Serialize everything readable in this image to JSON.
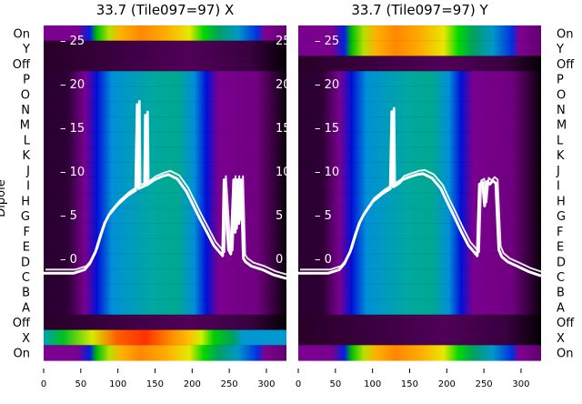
{
  "chart_data": {
    "type": "heatmap",
    "ylabel": "Dipole",
    "row_labels_top_to_bottom": [
      "On",
      "Y",
      "Off",
      "P",
      "O",
      "N",
      "M",
      "L",
      "K",
      "J",
      "I",
      "H",
      "G",
      "F",
      "E",
      "D",
      "C",
      "B",
      "A",
      "Off",
      "X",
      "On"
    ],
    "xticks": [
      0,
      50,
      100,
      150,
      200,
      250,
      300
    ],
    "xlim": [
      0,
      327
    ],
    "overlay_yticks": [
      0,
      5,
      10,
      15,
      20,
      25
    ],
    "overlay_ylim": [
      -1.7,
      26.6
    ],
    "panels": [
      {
        "title": "33.7 (Tile097=97) X",
        "row_kinds": [
          "on",
          "off",
          "off",
          "blue",
          "blue",
          "blue",
          "blue",
          "blue",
          "blue",
          "blue",
          "blue",
          "blue",
          "blue",
          "blue",
          "blue",
          "blue",
          "blue",
          "blue",
          "blue",
          "off",
          "x",
          "on"
        ],
        "trace": {
          "x": [
            0,
            40,
            55,
            62,
            70,
            76,
            82,
            88,
            100,
            113,
            124,
            126,
            127,
            128,
            136,
            137,
            138,
            139,
            149,
            160,
            168,
            180,
            192,
            202,
            210,
            220,
            229,
            238,
            241,
            243,
            246,
            249,
            252,
            256,
            258,
            261,
            263,
            266,
            269,
            272,
            280,
            295,
            310,
            327
          ],
          "y": [
            -1.7,
            -1.7,
            -1.3,
            -0.6,
            0.8,
            2.5,
            4,
            5,
            6.2,
            7.2,
            7.8,
            17.6,
            17.6,
            8,
            8.3,
            16.4,
            16.4,
            8.4,
            9,
            9.4,
            9.6,
            9.1,
            7.7,
            6,
            4.6,
            3,
            1.5,
            0.6,
            0.3,
            9,
            5,
            1,
            0.5,
            9,
            3,
            9,
            4,
            9,
            0,
            -0.4,
            -0.9,
            -1.3,
            -1.9,
            -2.3
          ]
        }
      },
      {
        "title": "33.7 (Tile097=97) Y",
        "row_kinds": [
          "on",
          "on",
          "off",
          "blue",
          "blue",
          "blue",
          "blue",
          "blue",
          "blue",
          "blue",
          "blue",
          "blue",
          "blue",
          "blue",
          "blue",
          "blue",
          "blue",
          "blue",
          "blue",
          "off",
          "off",
          "on"
        ],
        "trace": {
          "x": [
            0,
            40,
            55,
            62,
            70,
            76,
            82,
            88,
            100,
            113,
            124,
            126,
            127,
            128,
            136,
            140,
            149,
            160,
            168,
            180,
            192,
            202,
            210,
            220,
            229,
            238,
            241,
            244,
            248,
            251,
            254,
            258,
            262,
            266,
            270,
            274,
            282,
            295,
            310,
            327
          ],
          "y": [
            -1.7,
            -1.7,
            -1.3,
            -0.6,
            0.8,
            2.5,
            4,
            5,
            6.5,
            7.4,
            8,
            16.8,
            16.8,
            8.2,
            8.6,
            9,
            9.3,
            9.6,
            9.7,
            9.2,
            8,
            6.2,
            4.8,
            3,
            1.5,
            0.6,
            0.3,
            8.5,
            8.7,
            6,
            8.8,
            8.5,
            8.9,
            8.6,
            1,
            0.2,
            -0.4,
            -0.9,
            -1.5,
            -2
          ]
        }
      }
    ]
  },
  "colors": {
    "trace": "#ffffff",
    "on": [
      [
        "0",
        "#7a0090"
      ],
      [
        "0.14",
        "#7a0090"
      ],
      [
        "0.19",
        "#0020e0"
      ],
      [
        "0.22",
        "#00c000"
      ],
      [
        "0.27",
        "#b8e000"
      ],
      [
        "0.32",
        "#ffb000"
      ],
      [
        "0.4",
        "#ff8800"
      ],
      [
        "0.5",
        "#ffaa00"
      ],
      [
        "0.6",
        "#e8e800"
      ],
      [
        "0.66",
        "#00d800"
      ],
      [
        "0.72",
        "#00a060"
      ],
      [
        "0.8",
        "#0098c8"
      ],
      [
        "0.88",
        "#0030e0"
      ],
      [
        "0.91",
        "#800090"
      ],
      [
        "1",
        "#600070"
      ]
    ],
    "off": [
      [
        "0",
        "#280028"
      ],
      [
        "0.3",
        "#3a0040"
      ],
      [
        "0.6",
        "#500058"
      ],
      [
        "0.85",
        "#3a0040"
      ],
      [
        "1",
        "#050005"
      ]
    ],
    "blue": [
      [
        "0",
        "#2a0030"
      ],
      [
        "0.1",
        "#2e0036"
      ],
      [
        "0.17",
        "#7a0090"
      ],
      [
        "0.22",
        "#0010d8"
      ],
      [
        "0.28",
        "#0090d8"
      ],
      [
        "0.45",
        "#00a8a0"
      ],
      [
        "0.55",
        "#00a890"
      ],
      [
        "0.62",
        "#0090d8"
      ],
      [
        "0.67",
        "#0010d8"
      ],
      [
        "0.72",
        "#7a0090"
      ],
      [
        "0.88",
        "#700080"
      ],
      [
        "1",
        "#0a000a"
      ]
    ],
    "x": [
      [
        "0",
        "#00a0b0"
      ],
      [
        "0.08",
        "#00c020"
      ],
      [
        "0.2",
        "#d8e800"
      ],
      [
        "0.3",
        "#ff6000"
      ],
      [
        "0.42",
        "#ff3000"
      ],
      [
        "0.52",
        "#ff8800"
      ],
      [
        "0.6",
        "#ffc000"
      ],
      [
        "0.65",
        "#d0f000"
      ],
      [
        "0.7",
        "#00d000"
      ],
      [
        "0.78",
        "#00a060"
      ],
      [
        "0.82",
        "#0098d0"
      ],
      [
        "1",
        "#0098d0"
      ]
    ]
  }
}
